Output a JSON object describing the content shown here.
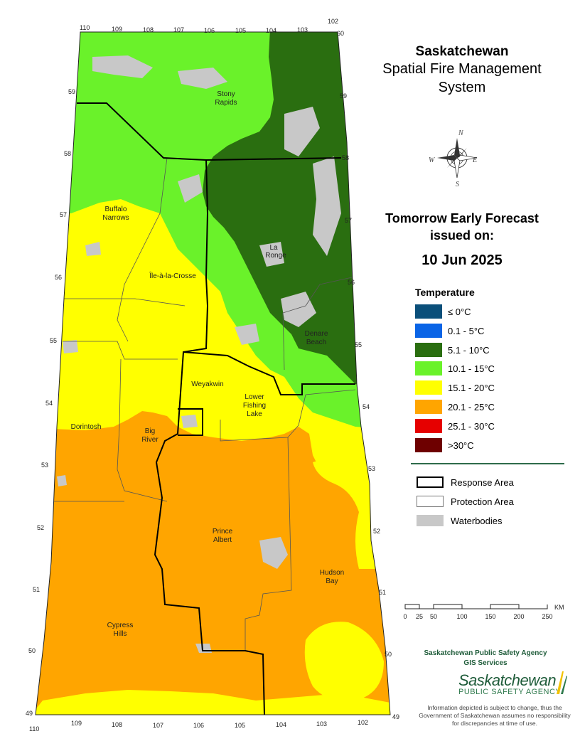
{
  "title": {
    "line1": "Saskatchewan",
    "line2": "Spatial Fire Management",
    "line3": "System"
  },
  "forecast": {
    "line1": "Tomorrow Early Forecast",
    "line2": "issued on:",
    "date": "10 Jun 2025"
  },
  "legend": {
    "title": "Temperature",
    "items": [
      {
        "label": "≤ 0°C",
        "color": "#0a4f7a"
      },
      {
        "label": "0.1 - 5°C",
        "color": "#0a64e6"
      },
      {
        "label": "5.1 - 10°C",
        "color": "#2a6e10"
      },
      {
        "label": "10.1 - 15°C",
        "color": "#6af22a"
      },
      {
        "label": "15.1 - 20°C",
        "color": "#ffff00"
      },
      {
        "label": "20.1 - 25°C",
        "color": "#ffa500"
      },
      {
        "label": "25.1 - 30°C",
        "color": "#e60000"
      },
      {
        "label": ">30°C",
        "color": "#6e0000"
      }
    ]
  },
  "symbols": {
    "response_area": "Response Area",
    "protection_area": "Protection Area",
    "waterbodies": "Waterbodies"
  },
  "scale": {
    "unit": "KM",
    "ticks": [
      "0",
      "25",
      "50",
      "100",
      "150",
      "200",
      "250"
    ]
  },
  "compass": {
    "n": "N",
    "s": "S",
    "e": "E",
    "w": "W"
  },
  "agency": {
    "line1": "Saskatchewan Public Safety Agency",
    "line2": "GIS  Services",
    "logo_word": "Saskatchewan",
    "logo_sub": "PUBLIC SAFETY AGENCY"
  },
  "disclaimer": "Information depicted is subject to change, thus the Government of Saskatchewan assumes no responsibility for discrepancies at time of use.",
  "map": {
    "places": [
      "Stony Rapids",
      "Buffalo Narrows",
      "La Ronge",
      "Île-à-la-Crosse",
      "Weyakwin",
      "Lower Fishing Lake",
      "Denare Beach",
      "Dorintosh",
      "Big River",
      "Prince Albert",
      "Hudson Bay",
      "Cypress Hills"
    ],
    "lon_top": [
      "110",
      "109",
      "108",
      "107",
      "106",
      "105",
      "104",
      "103",
      "102"
    ],
    "lon_bottom": [
      "110",
      "109",
      "108",
      "107",
      "106",
      "105",
      "104",
      "103",
      "102"
    ],
    "lat": [
      "60",
      "59",
      "58",
      "57",
      "56",
      "55",
      "54",
      "53",
      "52",
      "51",
      "50",
      "49"
    ]
  }
}
